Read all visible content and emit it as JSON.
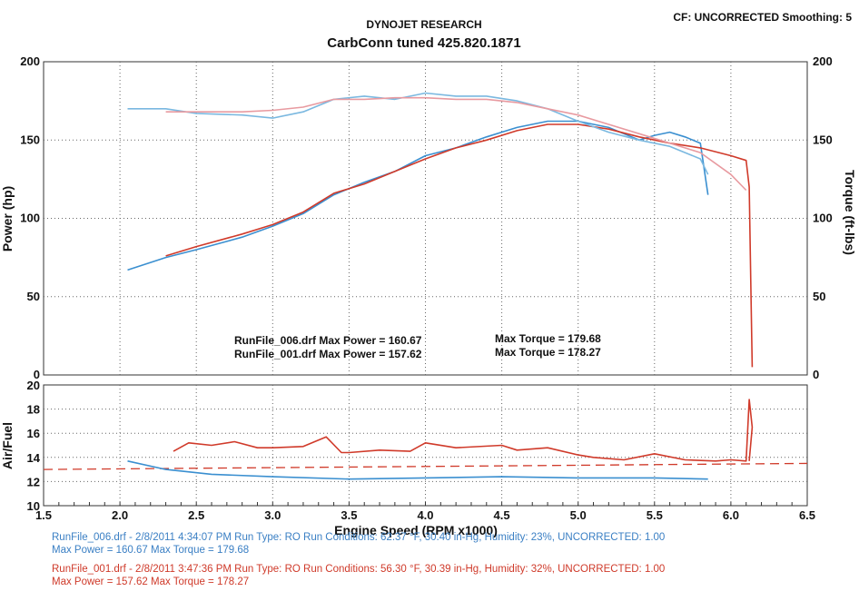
{
  "header": {
    "company": "DYNOJET RESEARCH",
    "title": "CarbConn tuned  425.820.1871",
    "corner": "CF: UNCORRECTED  Smoothing: 5"
  },
  "colors": {
    "run006_power": "#3a8fd0",
    "run006_torque": "#7ab8e0",
    "run001_power": "#d03a2a",
    "run001_torque": "#e89aa0",
    "run006_text": "#3a7fc4",
    "run001_text": "#cf3a2a"
  },
  "summary": [
    {
      "text": "RunFile_006.drf Max Power = 160.67",
      "torque": "Max Torque = 179.68"
    },
    {
      "text": "RunFile_001.drf Max Power = 157.62",
      "torque": "Max Torque = 178.27"
    }
  ],
  "footer": [
    {
      "line1": "RunFile_006.drf - 2/8/2011 4:34:07 PM  Run Type: RO  Run Conditions: 62.37 °F, 30.40 in-Hg,  Humidity:  23%, UNCORRECTED: 1.00",
      "line2": "Max Power = 160.67  Max Torque = 179.68"
    },
    {
      "line1": "RunFile_001.drf - 2/8/2011 3:47:36 PM  Run Type: RO  Run Conditions: 56.30 °F, 30.39 in-Hg,  Humidity:  32%, UNCORRECTED: 1.00",
      "line2": "Max Power = 157.62  Max Torque = 178.27"
    }
  ],
  "chart_data": [
    {
      "type": "line",
      "panel": "power-torque",
      "ylabel": "Power (hp)",
      "y2label": "Torque (ft-lbs)",
      "xlim": [
        1.5,
        6.5
      ],
      "ylim": [
        0,
        200
      ],
      "y2lim": [
        0,
        200
      ],
      "yticks": [
        0,
        50,
        100,
        150,
        200
      ],
      "y2ticks": [
        0,
        50,
        100,
        150,
        200
      ],
      "grid": true,
      "series": [
        {
          "name": "RunFile_006.drf Power",
          "axis": "left",
          "color": "#3a8fd0",
          "x": [
            2.05,
            2.3,
            2.5,
            2.8,
            3.0,
            3.2,
            3.4,
            3.6,
            3.8,
            4.0,
            4.2,
            4.4,
            4.6,
            4.8,
            5.0,
            5.2,
            5.4,
            5.5,
            5.6,
            5.7,
            5.8,
            5.85
          ],
          "y": [
            67,
            75,
            80,
            88,
            95,
            103,
            115,
            123,
            130,
            140,
            145,
            152,
            158,
            162,
            162,
            158,
            150,
            153,
            155,
            152,
            148,
            115
          ]
        },
        {
          "name": "RunFile_001.drf Power",
          "axis": "left",
          "color": "#d03a2a",
          "x": [
            2.3,
            2.5,
            2.8,
            3.0,
            3.2,
            3.4,
            3.6,
            3.8,
            4.0,
            4.2,
            4.4,
            4.6,
            4.8,
            5.0,
            5.2,
            5.4,
            5.6,
            5.8,
            6.0,
            6.1,
            6.12,
            6.13,
            6.14
          ],
          "y": [
            76,
            82,
            90,
            96,
            104,
            116,
            122,
            130,
            138,
            145,
            150,
            156,
            160,
            160,
            157,
            152,
            148,
            145,
            140,
            137,
            120,
            60,
            5
          ]
        },
        {
          "name": "RunFile_006.drf Torque",
          "axis": "right",
          "color": "#7ab8e0",
          "x": [
            2.05,
            2.3,
            2.5,
            2.8,
            3.0,
            3.2,
            3.4,
            3.6,
            3.8,
            4.0,
            4.2,
            4.4,
            4.6,
            4.8,
            5.0,
            5.2,
            5.4,
            5.6,
            5.8,
            5.85
          ],
          "y": [
            170,
            170,
            167,
            166,
            164,
            168,
            176,
            178,
            176,
            180,
            178,
            178,
            175,
            170,
            162,
            155,
            150,
            146,
            138,
            128
          ]
        },
        {
          "name": "RunFile_001.drf Torque",
          "axis": "right",
          "color": "#e89aa0",
          "x": [
            2.3,
            2.5,
            2.8,
            3.0,
            3.2,
            3.4,
            3.6,
            3.8,
            4.0,
            4.2,
            4.4,
            4.6,
            4.8,
            5.0,
            5.2,
            5.4,
            5.6,
            5.8,
            6.0,
            6.1
          ],
          "y": [
            168,
            168,
            168,
            169,
            171,
            176,
            176,
            177,
            177,
            176,
            176,
            174,
            170,
            166,
            160,
            154,
            148,
            142,
            128,
            118
          ]
        }
      ]
    },
    {
      "type": "line",
      "panel": "air-fuel",
      "ylabel": "Air/Fuel",
      "xlabel": "Engine Speed (RPM x1000)",
      "xlim": [
        1.5,
        6.5
      ],
      "ylim": [
        10,
        20
      ],
      "yticks": [
        10,
        12,
        14,
        16,
        18,
        20
      ],
      "xticks": [
        1.5,
        2.0,
        2.5,
        3.0,
        3.5,
        4.0,
        4.5,
        5.0,
        5.5,
        6.0,
        6.5
      ],
      "grid": true,
      "reference_line": {
        "y": 13.0,
        "y_end": 13.5,
        "color": "#d03a2a",
        "style": "dashed"
      },
      "series": [
        {
          "name": "RunFile_006.drf AFR",
          "color": "#3a8fd0",
          "x": [
            2.05,
            2.3,
            2.6,
            3.0,
            3.5,
            4.0,
            4.5,
            5.0,
            5.5,
            5.85
          ],
          "y": [
            13.7,
            13.0,
            12.6,
            12.4,
            12.2,
            12.3,
            12.4,
            12.3,
            12.3,
            12.2
          ]
        },
        {
          "name": "RunFile_001.drf AFR",
          "color": "#d03a2a",
          "x": [
            2.35,
            2.45,
            2.6,
            2.75,
            2.9,
            3.0,
            3.2,
            3.35,
            3.45,
            3.5,
            3.7,
            3.9,
            4.0,
            4.2,
            4.5,
            4.6,
            4.8,
            5.0,
            5.1,
            5.3,
            5.5,
            5.7,
            5.9,
            6.0,
            6.1,
            6.12,
            6.14,
            6.12
          ],
          "y": [
            14.5,
            15.2,
            15.0,
            15.3,
            14.8,
            14.8,
            14.9,
            15.7,
            14.4,
            14.4,
            14.6,
            14.5,
            15.2,
            14.8,
            15.0,
            14.6,
            14.8,
            14.2,
            14.0,
            13.8,
            14.3,
            13.8,
            13.7,
            13.8,
            13.7,
            18.8,
            16.5,
            13.7
          ]
        }
      ]
    }
  ]
}
